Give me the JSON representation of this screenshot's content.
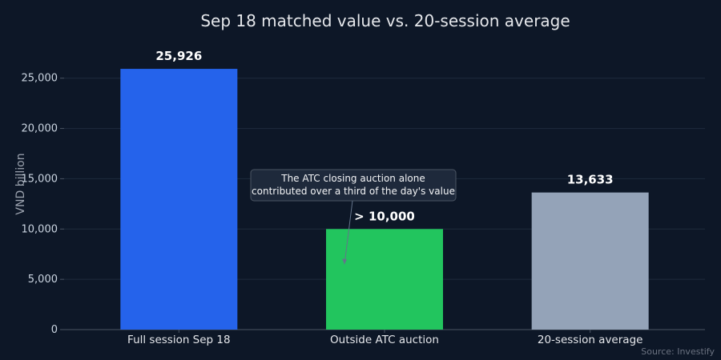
{
  "chart_data": {
    "type": "bar",
    "title": "Sep 18 matched value vs. 20-session average",
    "xlabel": "",
    "ylabel": "VND billion",
    "ylim": [
      0,
      28000
    ],
    "yticks": [
      0,
      5000,
      10000,
      15000,
      20000,
      25000
    ],
    "ytick_labels": [
      "0",
      "5,000",
      "10,000",
      "15,000",
      "20,000",
      "25,000"
    ],
    "grid": "horizontal",
    "legend": "none",
    "categories": [
      "Full session Sep 18",
      "Outside ATC auction",
      "20-session average"
    ],
    "values": [
      25926,
      10000,
      13633
    ],
    "value_labels": [
      "25,926",
      "> 10,000",
      "13,633"
    ],
    "colors": [
      "#2563eb",
      "#22c55e",
      "#94a3b8"
    ],
    "annotation": {
      "lines": [
        "The ATC closing auction alone",
        "contributed over a third of the day's value"
      ],
      "target_category": 1,
      "target_value": 6500
    },
    "source": "Source: Investify"
  },
  "theme": {
    "background": "#0d1727",
    "grid_color": "#1f2b3d",
    "axis_color": "#4b5563",
    "text_color": "#e5e7eb",
    "tick_color": "#cbd5e1",
    "muted_color": "#6b7280",
    "annotation_bg": "#1e293b",
    "annotation_border": "#4b5563"
  }
}
